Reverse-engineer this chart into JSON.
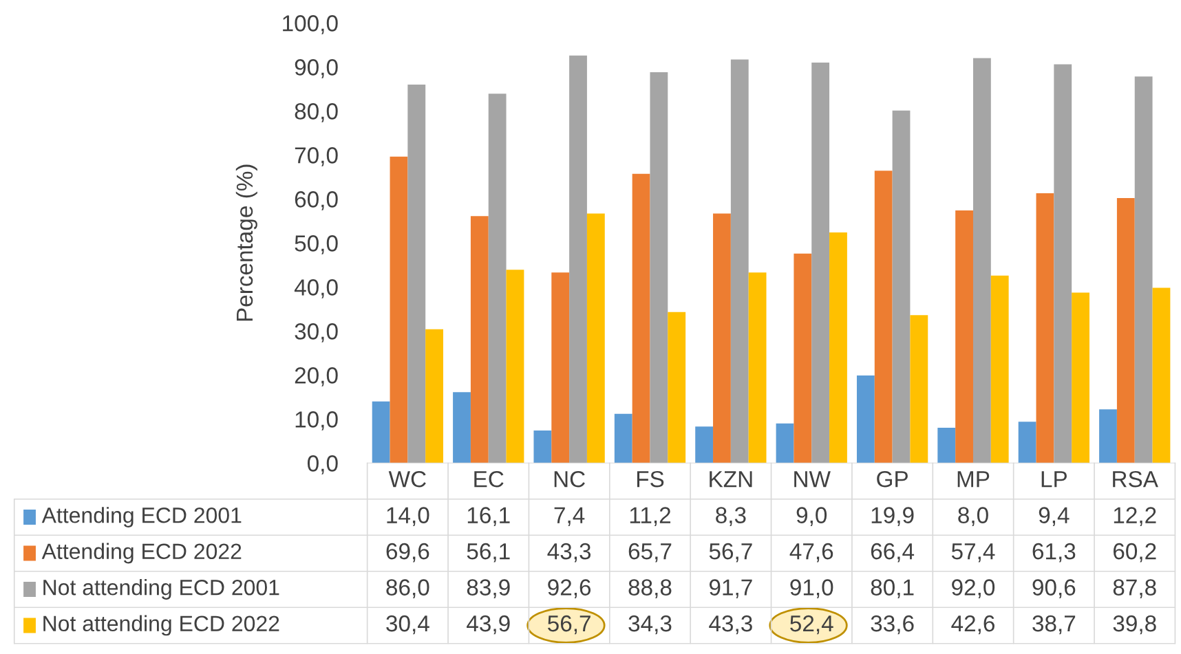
{
  "chart_data": {
    "type": "bar",
    "ylabel": "Percentage (%)",
    "categories": [
      "WC",
      "EC",
      "NC",
      "FS",
      "KZN",
      "NW",
      "GP",
      "MP",
      "LP",
      "RSA"
    ],
    "series": [
      {
        "name": "Attending ECD 2001",
        "color": "#5b9bd5",
        "values": [
          14.0,
          16.1,
          7.4,
          11.2,
          8.3,
          9.0,
          19.9,
          8.0,
          9.4,
          12.2
        ],
        "value_labels": [
          "14,0",
          "16,1",
          "7,4",
          "11,2",
          "8,3",
          "9,0",
          "19,9",
          "8,0",
          "9,4",
          "12,2"
        ]
      },
      {
        "name": "Attending ECD 2022",
        "color": "#ed7d31",
        "values": [
          69.6,
          56.1,
          43.3,
          65.7,
          56.7,
          47.6,
          66.4,
          57.4,
          61.3,
          60.2
        ],
        "value_labels": [
          "69,6",
          "56,1",
          "43,3",
          "65,7",
          "56,7",
          "47,6",
          "66,4",
          "57,4",
          "61,3",
          "60,2"
        ]
      },
      {
        "name": "Not attending ECD 2001",
        "color": "#a5a5a5",
        "values": [
          86.0,
          83.9,
          92.6,
          88.8,
          91.7,
          91.0,
          80.1,
          92.0,
          90.6,
          87.8
        ],
        "value_labels": [
          "86,0",
          "83,9",
          "92,6",
          "88,8",
          "91,7",
          "91,0",
          "80,1",
          "92,0",
          "90,6",
          "87,8"
        ]
      },
      {
        "name": "Not attending ECD 2022",
        "color": "#ffc000",
        "values": [
          30.4,
          43.9,
          56.7,
          34.3,
          43.3,
          52.4,
          33.6,
          42.6,
          38.7,
          39.8
        ],
        "value_labels": [
          "30,4",
          "43,9",
          "56,7",
          "34,3",
          "43,3",
          "52,4",
          "33,6",
          "42,6",
          "38,7",
          "39,8"
        ]
      }
    ],
    "ylim": [
      0,
      100
    ],
    "yticks": [
      {
        "value": 0,
        "label": "0,0"
      },
      {
        "value": 10,
        "label": "10,0"
      },
      {
        "value": 20,
        "label": "20,0"
      },
      {
        "value": 30,
        "label": "30,0"
      },
      {
        "value": 40,
        "label": "40,0"
      },
      {
        "value": 50,
        "label": "50,0"
      },
      {
        "value": 60,
        "label": "60,0"
      },
      {
        "value": 70,
        "label": "70,0"
      },
      {
        "value": 80,
        "label": "80,0"
      },
      {
        "value": 90,
        "label": "90,0"
      },
      {
        "value": 100,
        "label": "100,0"
      }
    ],
    "grid": false,
    "legend": "bottom"
  }
}
